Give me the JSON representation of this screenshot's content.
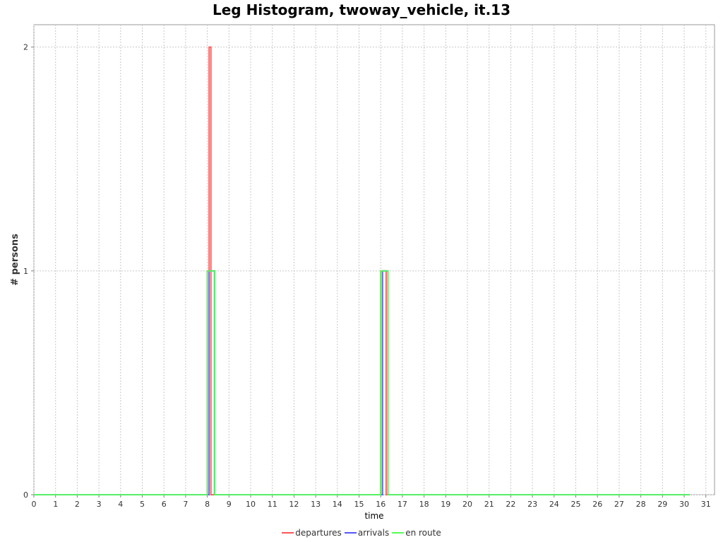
{
  "chart_data": {
    "type": "line",
    "title": "Leg Histogram, twoway_vehicle, it.13",
    "xlabel": "time",
    "ylabel": "# persons",
    "xlim": [
      0,
      31.4
    ],
    "ylim": [
      0,
      2.1
    ],
    "x_ticks": [
      "0",
      "1",
      "2",
      "3",
      "4",
      "5",
      "6",
      "7",
      "8",
      "9",
      "10",
      "11",
      "12",
      "13",
      "14",
      "15",
      "16",
      "17",
      "18",
      "19",
      "20",
      "21",
      "22",
      "23",
      "24",
      "25",
      "26",
      "27",
      "28",
      "29",
      "30",
      "31"
    ],
    "y_ticks": [
      "0",
      "1",
      "2"
    ],
    "grid": true,
    "legend_position": "bottom-center",
    "series": [
      {
        "name": "departures",
        "color": "#ff5555",
        "step": true,
        "x": [
          0,
          8.0,
          8.083,
          8.167,
          8.25,
          16.0,
          16.25,
          30.25
        ],
        "y": [
          0,
          1,
          2,
          0,
          0,
          1,
          0,
          0
        ]
      },
      {
        "name": "arrivals",
        "color": "#5555ff",
        "step": true,
        "x": [
          0,
          8.083,
          8.333,
          16.083,
          16.333,
          30.25
        ],
        "y": [
          0,
          1,
          0,
          1,
          0,
          0
        ]
      },
      {
        "name": "en route",
        "color": "#55ff55",
        "step": true,
        "x": [
          0,
          8.0,
          8.333,
          16.0,
          16.333,
          30.25
        ],
        "y": [
          0,
          1,
          0,
          1,
          0,
          0
        ]
      }
    ]
  }
}
